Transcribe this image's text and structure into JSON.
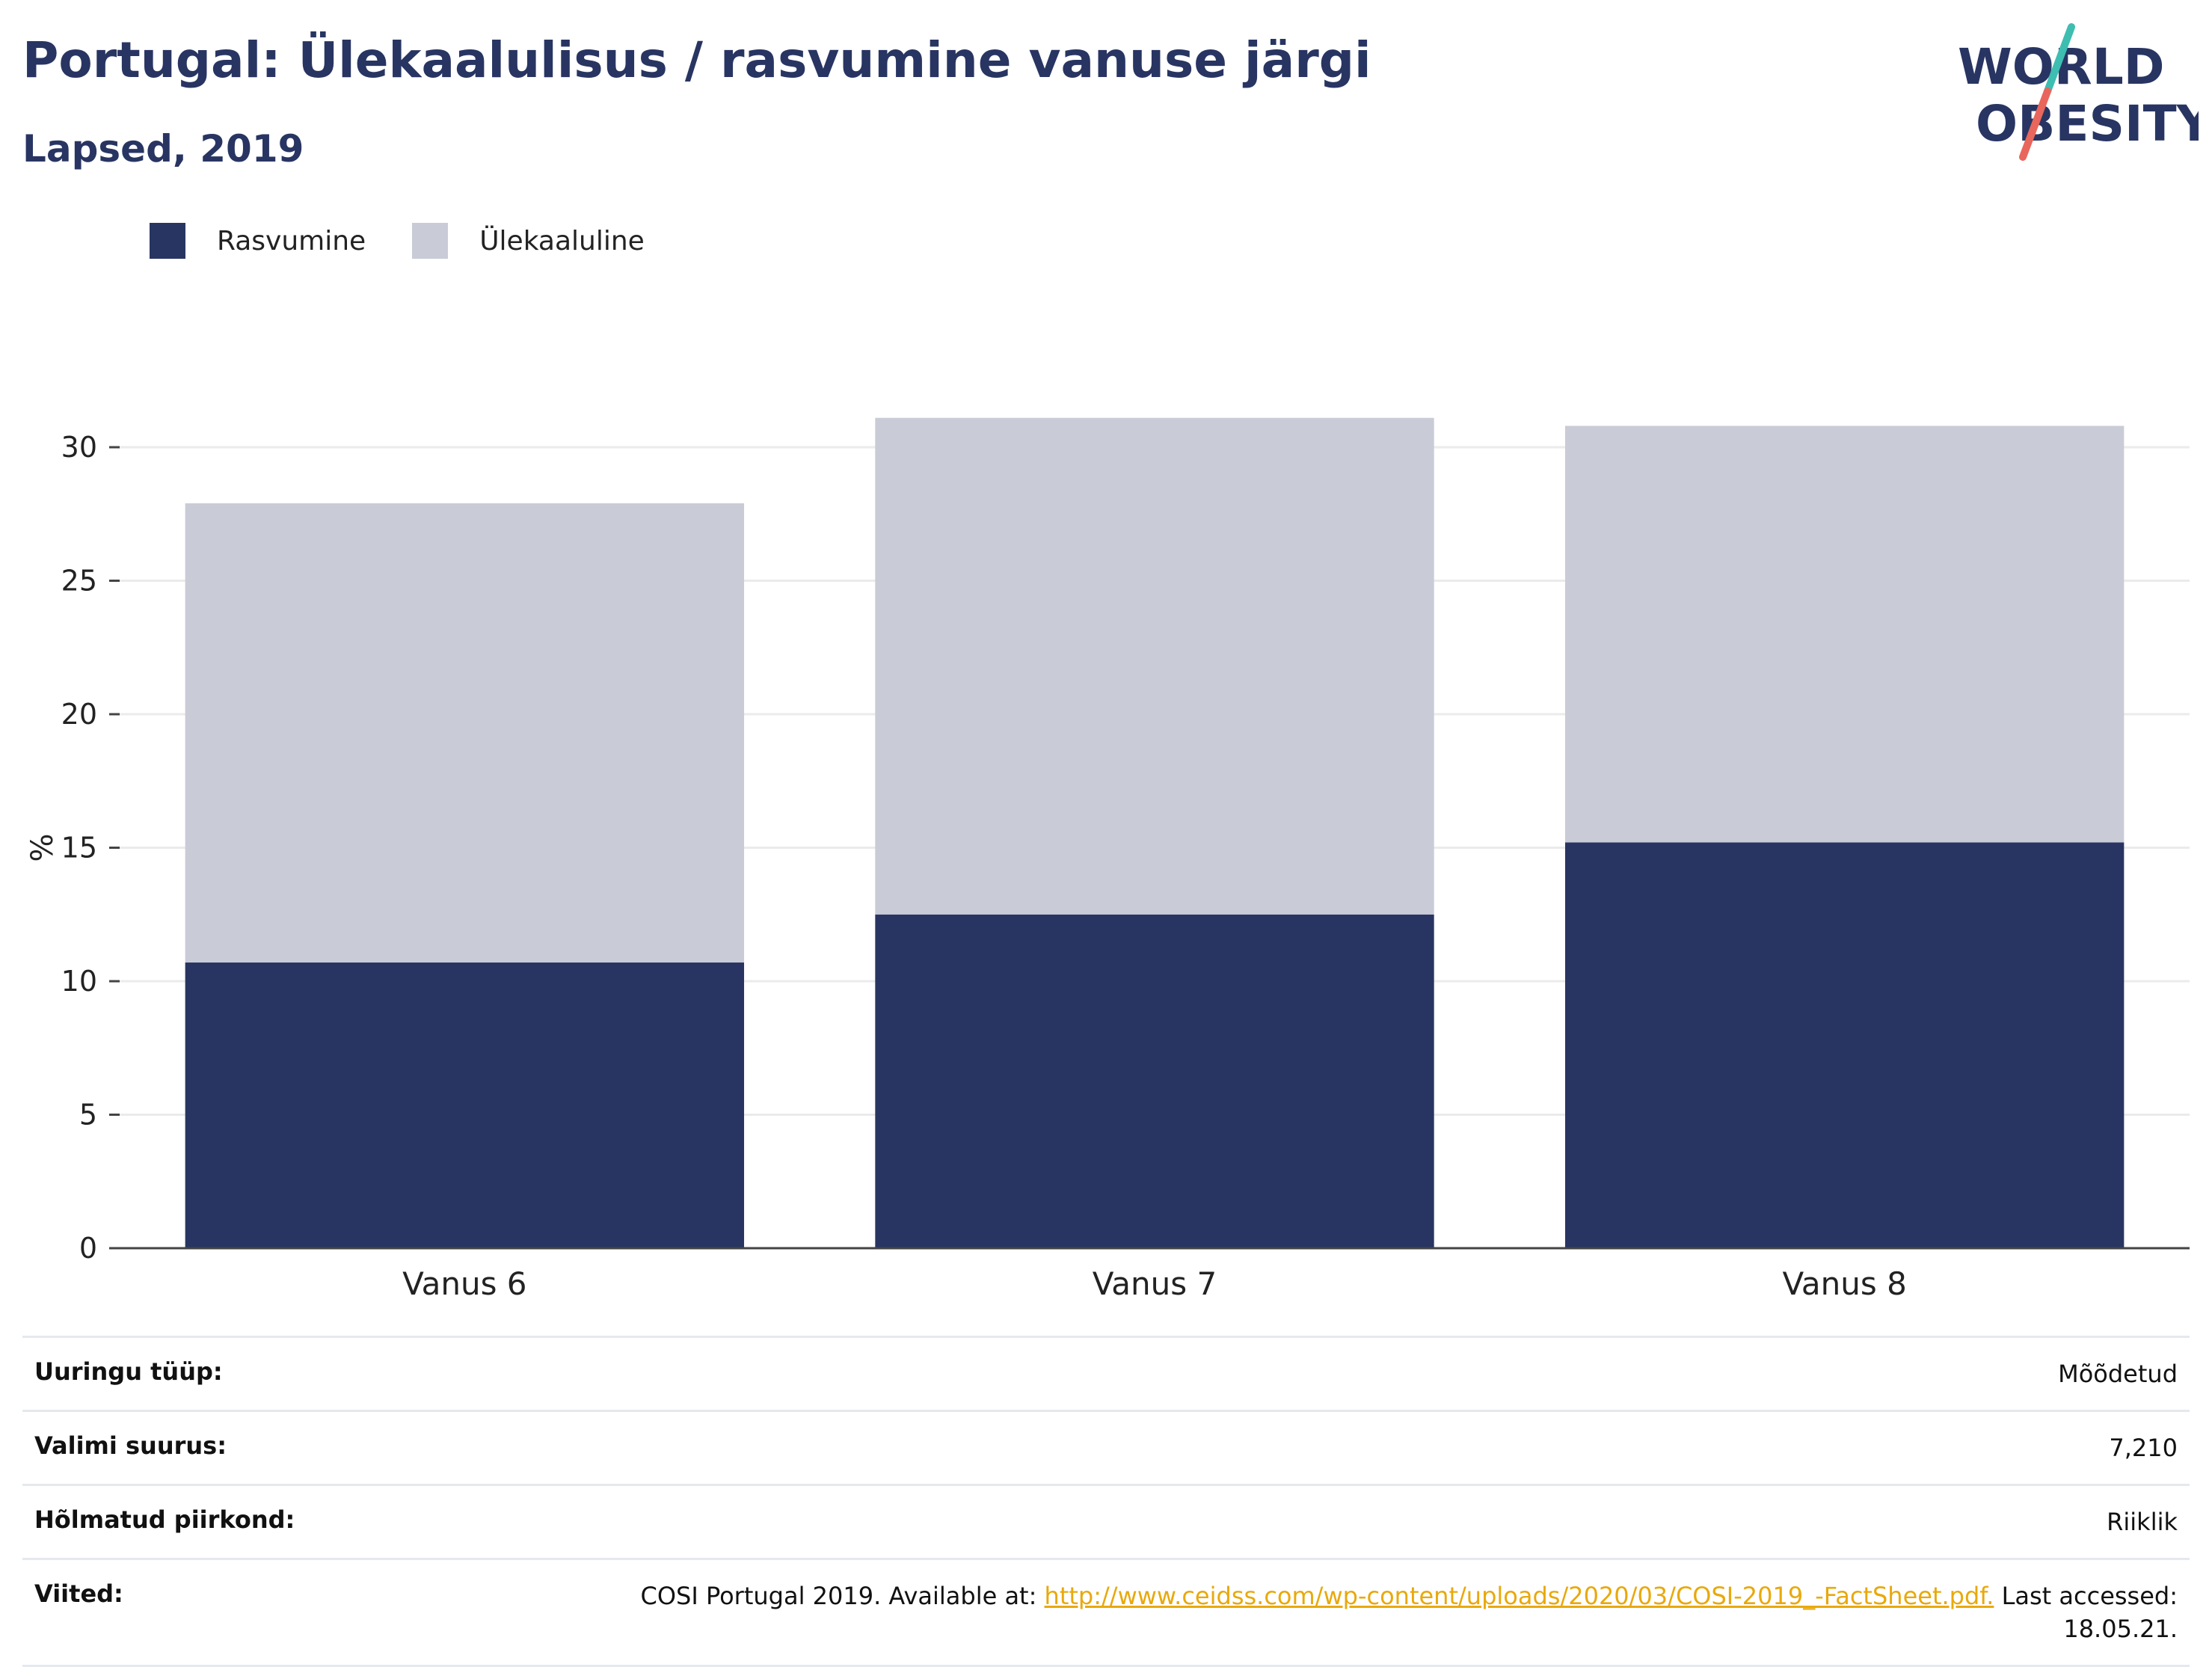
{
  "header": {
    "title": "Portugal: Ülekaalulisus / rasvumine vanuse järgi",
    "subtitle": "Lapsed, 2019"
  },
  "logo": {
    "line1": "WORLD",
    "line2": "OBESITY",
    "slash_top_color": "#3ebdb1",
    "slash_bottom_color": "#e8665c"
  },
  "colors": {
    "obesity": "#283562",
    "overweight": "#c9cbd7",
    "title": "#283562",
    "link": "#e8a90c",
    "grid": "#ebebeb"
  },
  "chart_data": {
    "type": "bar",
    "stacked": true,
    "categories": [
      "Vanus 6",
      "Vanus 7",
      "Vanus 8"
    ],
    "series": [
      {
        "name": "Rasvumine",
        "values": [
          10.7,
          12.5,
          15.2
        ]
      },
      {
        "name": "Ülekaaluline",
        "values": [
          17.2,
          18.6,
          15.6
        ]
      }
    ],
    "ylabel": "%",
    "yticks": [
      0,
      5,
      10,
      15,
      20,
      25,
      30
    ],
    "ylim": [
      0,
      32.5
    ],
    "grid": true,
    "legend_position": "top-left"
  },
  "info": [
    {
      "label": "Uuringu tüüp:",
      "value": "Mõõdetud"
    },
    {
      "label": "Valimi suurus:",
      "value": "7,210"
    },
    {
      "label": "Hõlmatud piirkond:",
      "value": "Riiklik"
    }
  ],
  "references": {
    "label": "Viited:",
    "prefix": "COSI Portugal 2019. Available at: ",
    "link": "http://www.ceidss.com/wp-content/uploads/2020/03/COSI-2019_-FactSheet.pdf.",
    "suffix": " Last accessed:",
    "suffix2": "18.05.21."
  }
}
